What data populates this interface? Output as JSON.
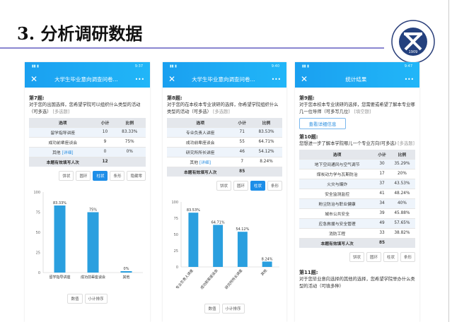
{
  "slide": {
    "title": "3. 分析调研数据",
    "logo_text": "中国矿业大学 CHINA UNIVERSITY OF MINING & TECHNOLOGY 1909"
  },
  "colors": {
    "accent": "#1d8ee8",
    "bar": "#2a9fdf",
    "rule": "#8a86d0"
  },
  "chart_buttons": [
    "饼状",
    "圆环",
    "柱状",
    "条形",
    "隐藏零"
  ],
  "sort_buttons": [
    "数值",
    "小计排序"
  ],
  "headers": [
    "选项",
    "小计",
    "比例"
  ],
  "total_label": "本题有效填写人次",
  "detail_link": "[详细]",
  "phones": [
    {
      "status_time": "9:37",
      "title": "大学生毕业意向调查问卷...",
      "more": "•••",
      "q_no": "第7题:",
      "q_text": "对于您的出国选择，您希望学院可以组织什么类型的活动（可多选）",
      "q_tag": "[多选题]",
      "rows": [
        [
          "留学指导讲座",
          "10",
          "83.33%"
        ],
        [
          "成功前辈座谈会",
          "9",
          "75%"
        ],
        [
          "其他",
          "0",
          "0%"
        ]
      ],
      "total": "12"
    },
    {
      "status_time": "9:40",
      "title": "大学生毕业意向调查问卷...",
      "more": "•••",
      "q_no": "第8题:",
      "q_text": "对于您的在本校本专业读研的选择，你希望学院组织什么类型的活动（可多选）",
      "q_tag": "[多选题]",
      "rows": [
        [
          "专业负责人讲座",
          "71",
          "83.53%"
        ],
        [
          "成功前辈座谈会",
          "55",
          "64.71%"
        ],
        [
          "研究所所长讲座",
          "46",
          "54.12%"
        ],
        [
          "其他",
          "7",
          "8.24%"
        ]
      ],
      "total": "85"
    },
    {
      "status_time": "9:47",
      "title": "统计结果",
      "more": "•••",
      "q9_no": "第9题:",
      "q9_text": "对于您本校本专业读研的选择，您需要或希望了解本专业哪几一位导师（可多写几位）",
      "q9_tag": "[填空题]",
      "detail_button": "查看详细信息",
      "q_no": "第10题:",
      "q_text": "您想进一步了解本学院哪儿一个专业方向(可多选)",
      "q_tag": "[多选题]",
      "rows": [
        [
          "地下空间通风与空气调节",
          "30",
          "35.29%"
        ],
        [
          "煤炭动力学与瓦斯防治",
          "17",
          "20%"
        ],
        [
          "火灾与爆炸",
          "37",
          "43.53%"
        ],
        [
          "安全监测监控",
          "41",
          "48.24%"
        ],
        [
          "粉尘防治与职业健康",
          "34",
          "40%"
        ],
        [
          "城市公共安全",
          "39",
          "45.88%"
        ],
        [
          "应急救援与安全管理",
          "49",
          "57.65%"
        ],
        [
          "消防工程",
          "33",
          "38.82%"
        ]
      ],
      "total": "85",
      "q11_no": "第11题:",
      "q11_text": "对于您毕业意向选择的其他的选择，您希望学院举办什么类型的活动（可填多种）"
    }
  ],
  "chart_data": [
    {
      "type": "bar",
      "categories": [
        "留学指导讲座",
        "成功前辈座谈会",
        "其他"
      ],
      "values": [
        83.33,
        75,
        0
      ],
      "labels": [
        "83.33%",
        "75%",
        "0%"
      ],
      "ylim": [
        0,
        100
      ],
      "yticks": [
        "0",
        "25",
        "50",
        "75",
        "100"
      ]
    },
    {
      "type": "bar",
      "categories": [
        "专业负责人讲座",
        "成功前辈座谈会",
        "研究所所长讲座",
        "其他"
      ],
      "values": [
        83.53,
        64.71,
        54.12,
        8.24
      ],
      "labels": [
        "83.53%",
        "64.71%",
        "54.12%",
        "8.24%"
      ],
      "ylim": [
        0,
        100
      ],
      "yticks": [
        "0",
        "25",
        "50",
        "75",
        "100"
      ]
    }
  ]
}
